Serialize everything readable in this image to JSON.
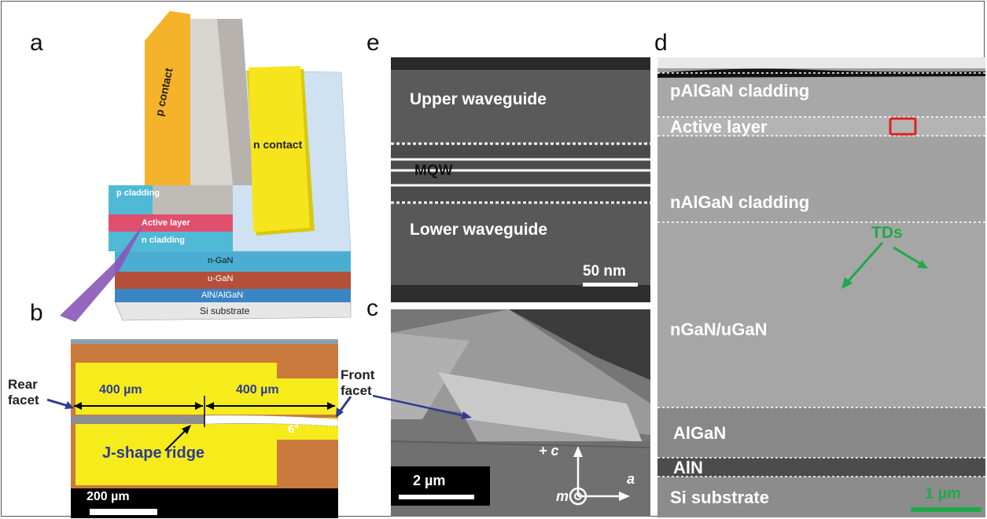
{
  "panel_labels": {
    "a": "a",
    "b": "b",
    "c": "c",
    "d": "d",
    "e": "e"
  },
  "panel_a": {
    "p_contact": "p contact",
    "n_contact": "n contact",
    "p_cladding": "p cladding",
    "active_layer": "Active layer",
    "n_cladding": "n cladding",
    "n_gan": "n-GaN",
    "u_gan": "u-GaN",
    "aln_algan": "AlN/AlGaN",
    "si_substrate": "Si substrate"
  },
  "panel_b": {
    "rear_facet": "Rear\nfacet",
    "front_facet": "Front\nfacet",
    "len_rear": "400 µm",
    "len_front": "400 µm",
    "angle": "6°",
    "ridge": "J-shape ridge",
    "scale": "200 µm"
  },
  "panel_c": {
    "axis_c": "+ c",
    "axis_a": "a",
    "axis_m": "m",
    "scale": "2 µm"
  },
  "panel_d": {
    "layers": [
      "pAlGaN cladding",
      "Active layer",
      "nAlGaN cladding",
      "nGaN/uGaN",
      "AlGaN",
      "AlN",
      "Si substrate"
    ],
    "tds": "TDs",
    "scale": "1 µm",
    "marker_color": "#e0201c",
    "tds_color": "#1faa4a"
  },
  "panel_e": {
    "upper": "Upper waveguide",
    "mqw": "MQW",
    "lower": "Lower waveguide",
    "scale": "50 nm"
  },
  "colors": {
    "p_contact": "#f4b32a",
    "n_contact": "#f6e51c",
    "cladding": "#4fb9d6",
    "active": "#e0506e",
    "u_gan": "#b4503a",
    "aln": "#3a85c4",
    "chip_bg": "#c97a3c",
    "chip_yellow": "#f6ec1c",
    "label_blue": "#2d3b93"
  }
}
